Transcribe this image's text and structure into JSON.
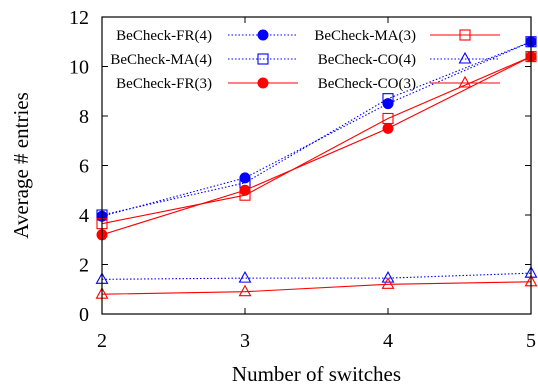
{
  "chart_data": {
    "type": "line",
    "title": "",
    "xlabel": "Number of switches",
    "ylabel": "Average # entries",
    "x": [
      2,
      3,
      4,
      5
    ],
    "xlim": [
      2,
      5
    ],
    "ylim": [
      0,
      12
    ],
    "xticks": [
      "2",
      "3",
      "4",
      "5"
    ],
    "yticks": [
      "0",
      "2",
      "4",
      "6",
      "8",
      "10",
      "12"
    ],
    "grid": false,
    "legend_position": "top",
    "colors": {
      "blue": "#0000ff",
      "red": "#ff0000"
    },
    "series": [
      {
        "name": "BeCheck-FR(4)",
        "color": "#0000ff",
        "line": "dotted",
        "marker": "filled-circle",
        "values": [
          3.95,
          5.5,
          8.5,
          11.0
        ]
      },
      {
        "name": "BeCheck-MA(4)",
        "color": "#0000ff",
        "line": "dotted",
        "marker": "open-square",
        "values": [
          4.0,
          5.3,
          8.7,
          11.0
        ]
      },
      {
        "name": "BeCheck-FR(3)",
        "color": "#ff0000",
        "line": "solid",
        "marker": "filled-circle",
        "values": [
          3.2,
          5.0,
          7.5,
          10.4
        ]
      },
      {
        "name": "BeCheck-MA(3)",
        "color": "#ff0000",
        "line": "solid",
        "marker": "open-square",
        "values": [
          3.65,
          4.8,
          7.9,
          10.4
        ]
      },
      {
        "name": "BeCheck-CO(4)",
        "color": "#0000ff",
        "line": "dotted",
        "marker": "open-triangle",
        "values": [
          1.4,
          1.45,
          1.45,
          1.65
        ]
      },
      {
        "name": "BeCheck-CO(3)",
        "color": "#ff0000",
        "line": "solid",
        "marker": "open-triangle",
        "values": [
          0.8,
          0.9,
          1.2,
          1.3
        ]
      }
    ],
    "legend_order": [
      0,
      3,
      1,
      4,
      2,
      5
    ]
  }
}
